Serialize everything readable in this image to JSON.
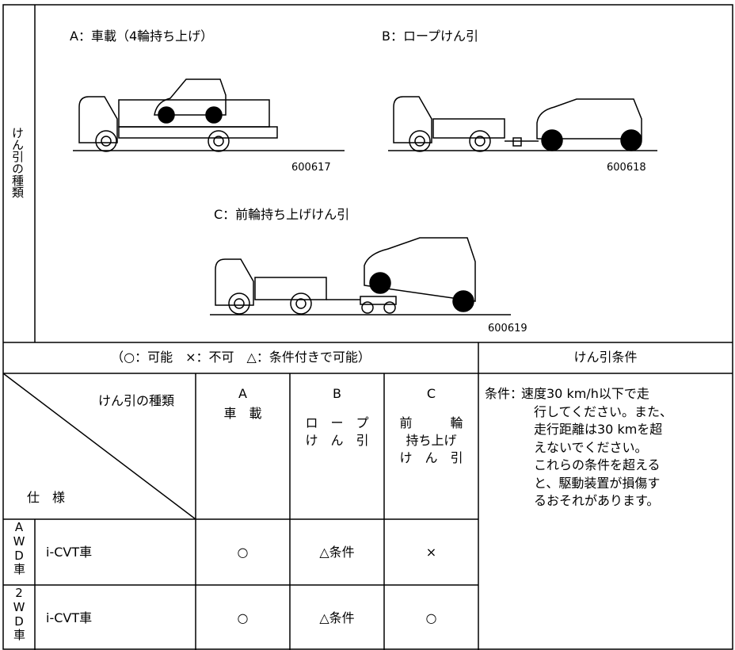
{
  "towing_types": {
    "side_label": "けん引の種類",
    "figures": [
      {
        "caption": "A：車載（4輪持ち上げ）",
        "code": "600617"
      },
      {
        "caption": "B：ロープけん引",
        "code": "600618"
      },
      {
        "caption": "C：前輪持ち上げけん引",
        "code": "600619"
      }
    ]
  },
  "table": {
    "legend": "（○：可能　×：不可　△：条件付きで可能）",
    "condition_header": "けん引条件",
    "corner_top": "けん引の種類",
    "corner_bottom": "仕　様",
    "columns": [
      {
        "letter": "A",
        "lines": [
          "車　載"
        ]
      },
      {
        "letter": "B",
        "lines": [
          "ロ　ー　プ",
          "け　ん　引"
        ]
      },
      {
        "letter": "C",
        "lines": [
          "前　　　輪",
          "持ち上げ",
          "け　ん　引"
        ]
      }
    ],
    "rows": [
      {
        "group": "AWD車",
        "spec": "i-CVT車",
        "cells": [
          "○",
          "△条件",
          "×"
        ]
      },
      {
        "group": "2WD車",
        "spec": "i-CVT車",
        "cells": [
          "○",
          "△条件",
          "○"
        ]
      }
    ],
    "condition_label": "条件：",
    "condition_lines": [
      "速度30 km/h以下で走",
      "行してください。また、",
      "走行距離は30 kmを超",
      "えないでください。",
      "これらの条件を超える",
      "と、駆動装置が損傷す",
      "るおそれがあります。"
    ]
  }
}
